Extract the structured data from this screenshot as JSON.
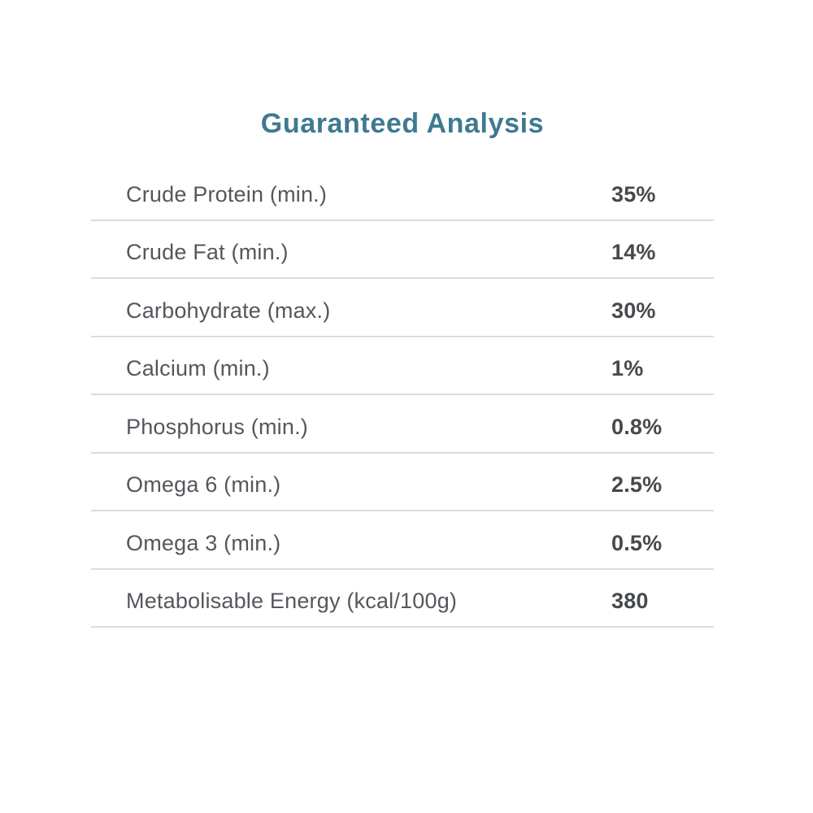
{
  "title": "Guaranteed Analysis",
  "table": {
    "rows": [
      {
        "label": "Crude Protein (min.)",
        "value": "35%"
      },
      {
        "label": "Crude Fat (min.)",
        "value": "14%"
      },
      {
        "label": "Carbohydrate (max.)",
        "value": "30%"
      },
      {
        "label": "Calcium (min.)",
        "value": "1%"
      },
      {
        "label": "Phosphorus (min.)",
        "value": "0.8%"
      },
      {
        "label": "Omega 6 (min.)",
        "value": "2.5%"
      },
      {
        "label": "Omega 3 (min.)",
        "value": "0.5%"
      },
      {
        "label": "Metabolisable Energy (kcal/100g)",
        "value": "380"
      }
    ]
  },
  "colors": {
    "title": "#3e7a90",
    "label": "#54575c",
    "value": "#46494d",
    "divider": "#dcdcdc",
    "background": "#ffffff"
  }
}
